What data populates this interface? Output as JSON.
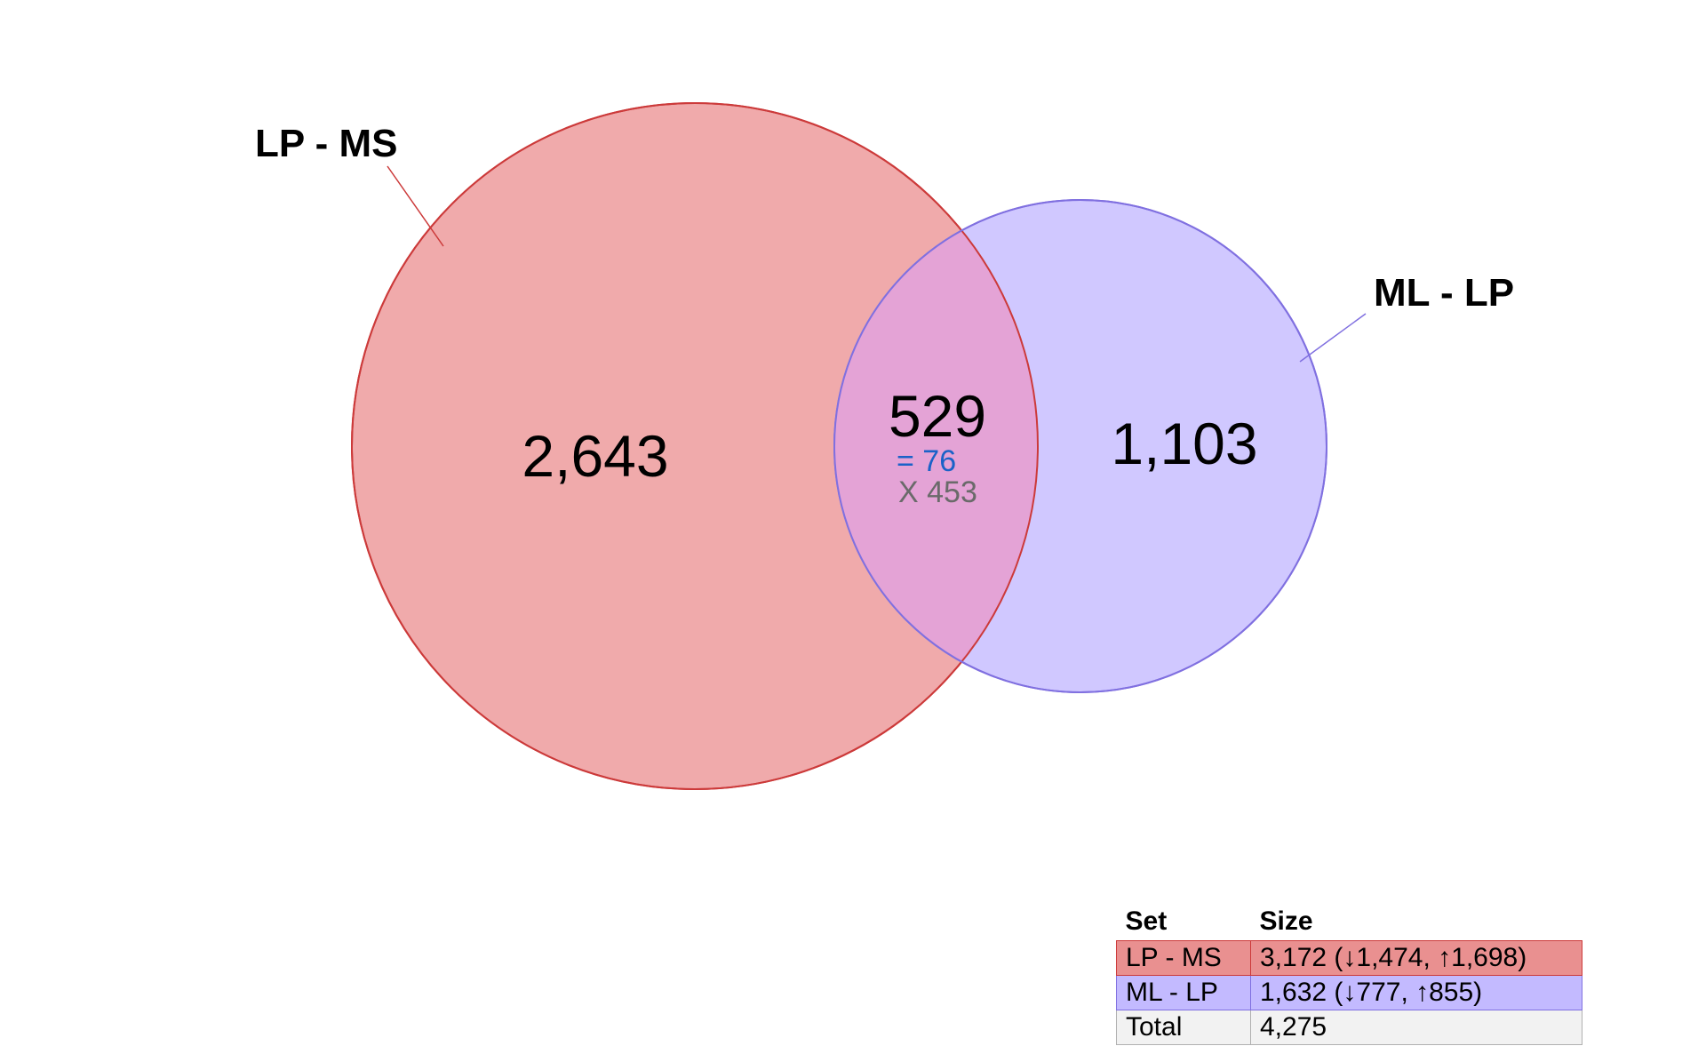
{
  "sets": [
    {
      "label": "LP - MS",
      "size": "3,172 (↓1,474, ↑1,698)",
      "fill": "#f0aaab",
      "stroke": "#cc3a3a",
      "table_color": "#e99090"
    },
    {
      "label": "ML - LP",
      "size": "1,632 (↓777, ↑855)",
      "fill": "#d0c8ff",
      "stroke": "#8070e0",
      "table_color": "#c3baff"
    }
  ],
  "regions": {
    "lp_ms_only": "2,643",
    "ml_lp_only": "1,103",
    "intersection": {
      "total": "529",
      "same": "= 76",
      "different": "X 453",
      "fill": "#e4a3d6",
      "same_color": "#1a62c8",
      "different_color": "#6a6a6a"
    }
  },
  "table": {
    "header_set": "Set",
    "header_size": "Size",
    "total_label": "Total",
    "total_value": "4,275",
    "total_color": "#f2f2f2"
  }
}
